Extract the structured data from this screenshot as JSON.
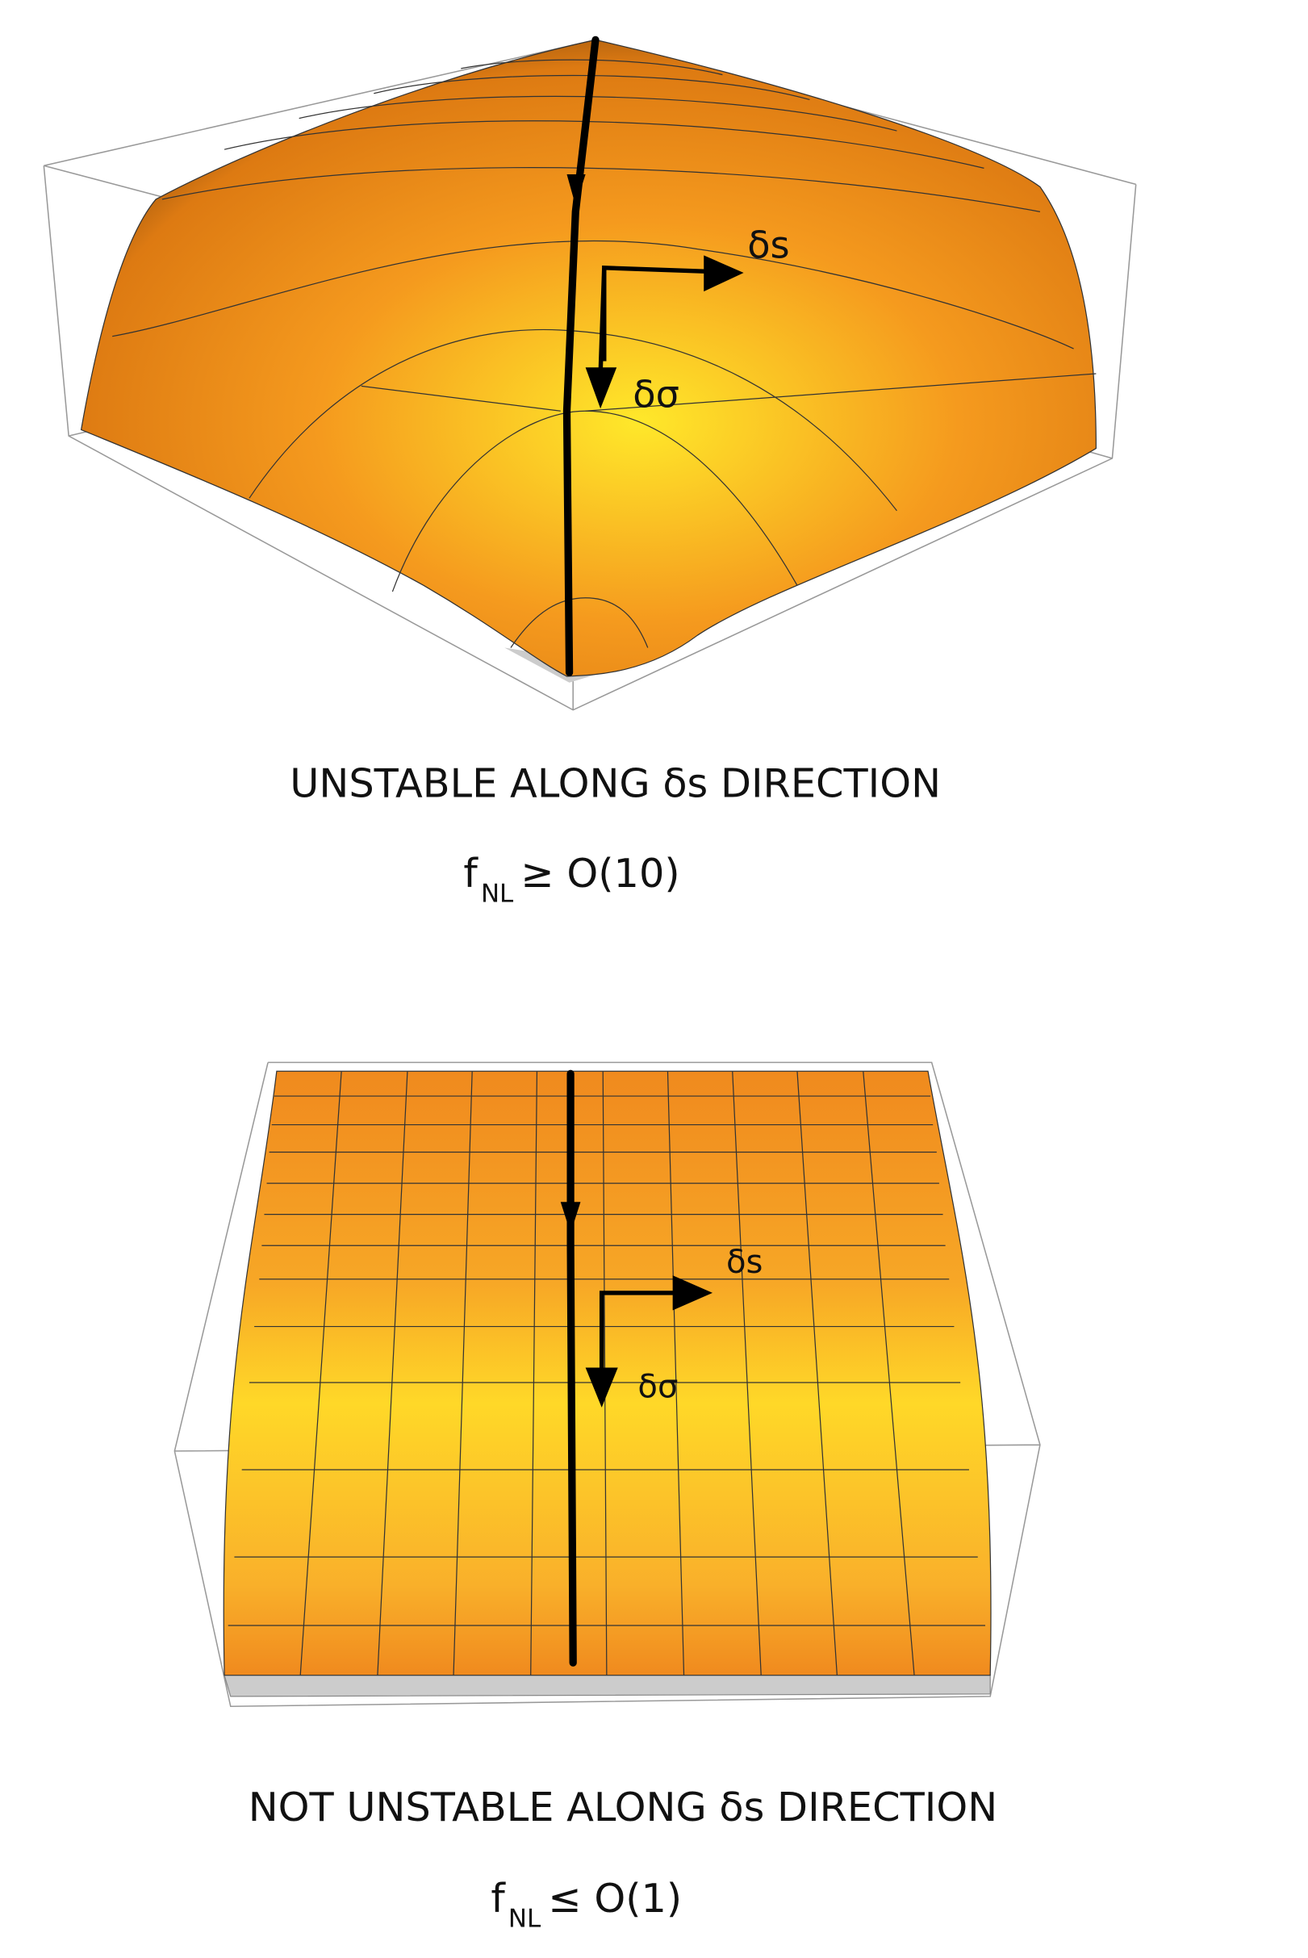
{
  "panels": [
    {
      "labels": {
        "ds": "δs",
        "dsigma": "δσ"
      },
      "caption": "UNSTABLE ALONG δs DIRECTION",
      "condition": {
        "f": "f",
        "subscript": "NL",
        "relation": "≥ O(10)"
      }
    },
    {
      "labels": {
        "ds": "δs",
        "dsigma": "δσ"
      },
      "caption": "NOT UNSTABLE ALONG δs DIRECTION",
      "condition": {
        "f": "f",
        "subscript": "NL",
        "relation": "≤ O(1)"
      }
    }
  ]
}
